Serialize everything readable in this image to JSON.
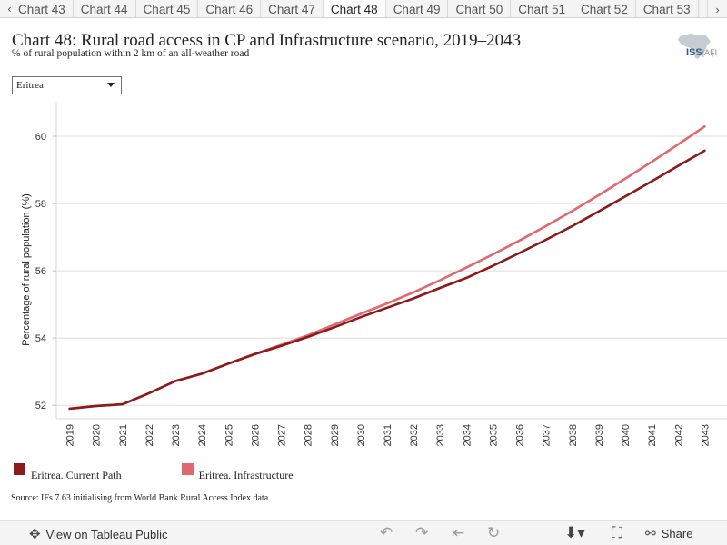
{
  "tabs": {
    "prev_icon": "chevron-left",
    "next_icon": "chevron-right",
    "items": [
      "Chart 43",
      "Chart 44",
      "Chart 45",
      "Chart 46",
      "Chart 47",
      "Chart 48",
      "Chart 49",
      "Chart 50",
      "Chart 51",
      "Chart 52",
      "Chart 53"
    ],
    "active_index": 5
  },
  "header": {
    "title": "Chart 48: Rural road access in CP and Infrastructure scenario, 2019–2043",
    "subtitle": "% of rural population within 2 km of an all-weather road"
  },
  "logo": {
    "text": "ISS",
    "text_sub": "AFI"
  },
  "filter": {
    "selected": "Eritrea"
  },
  "chart_data": {
    "type": "line",
    "x": [
      2019,
      2020,
      2021,
      2022,
      2023,
      2024,
      2025,
      2026,
      2027,
      2028,
      2029,
      2030,
      2031,
      2032,
      2033,
      2034,
      2035,
      2036,
      2037,
      2038,
      2039,
      2040,
      2041,
      2042,
      2043
    ],
    "series": [
      {
        "name": "Eritrea. Current Path",
        "color": "#8b1a1a",
        "values": [
          51.9,
          51.98,
          52.03,
          52.36,
          52.72,
          52.94,
          53.24,
          53.52,
          53.77,
          54.03,
          54.32,
          54.62,
          54.9,
          55.18,
          55.49,
          55.79,
          56.15,
          56.53,
          56.92,
          57.33,
          57.77,
          58.21,
          58.66,
          59.12,
          59.57
        ]
      },
      {
        "name": "Eritrea. Infrastructure",
        "color": "#e06870",
        "values": [
          51.9,
          51.98,
          52.03,
          52.36,
          52.72,
          52.94,
          53.24,
          53.53,
          53.8,
          54.08,
          54.4,
          54.72,
          55.03,
          55.36,
          55.72,
          56.1,
          56.49,
          56.9,
          57.33,
          57.78,
          58.25,
          58.74,
          59.24,
          59.76,
          60.29
        ]
      }
    ],
    "ylabel": "Percentage of rural population (%)",
    "xlabel": "",
    "yticks": [
      52,
      54,
      56,
      58,
      60
    ],
    "ylim": [
      51.6,
      61.0
    ],
    "grid": true,
    "legend": "bottom-left"
  },
  "source": "Source: IFs 7.63 initialising from World Bank Rural Access Index data",
  "toolbar": {
    "view_label": "View on Tableau Public",
    "share_label": "Share",
    "icons": [
      "tableau-logo-icon",
      "undo-icon",
      "redo-icon",
      "revert-icon",
      "refresh-icon",
      "download-icon",
      "fullscreen-icon",
      "share-icon"
    ]
  }
}
